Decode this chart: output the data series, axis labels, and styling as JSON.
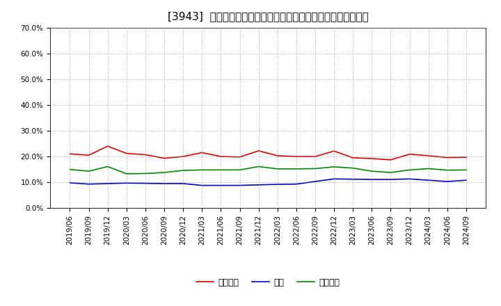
{
  "title": "[3943]  売上債権、在庫、買入債務の総資産に対する比率の推移",
  "x_labels": [
    "2019/06",
    "2019/09",
    "2019/12",
    "2020/03",
    "2020/06",
    "2020/09",
    "2020/12",
    "2021/03",
    "2021/06",
    "2021/09",
    "2021/12",
    "2022/03",
    "2022/06",
    "2022/09",
    "2022/12",
    "2023/03",
    "2023/06",
    "2023/09",
    "2023/12",
    "2024/03",
    "2024/06",
    "2024/09"
  ],
  "urikake": [
    0.21,
    0.205,
    0.24,
    0.212,
    0.207,
    0.193,
    0.2,
    0.215,
    0.2,
    0.198,
    0.222,
    0.203,
    0.2,
    0.2,
    0.221,
    0.195,
    0.192,
    0.187,
    0.209,
    0.203,
    0.196,
    0.197
  ],
  "zaiko": [
    0.098,
    0.093,
    0.095,
    0.097,
    0.096,
    0.095,
    0.095,
    0.088,
    0.088,
    0.088,
    0.09,
    0.092,
    0.093,
    0.103,
    0.113,
    0.112,
    0.111,
    0.111,
    0.113,
    0.108,
    0.103,
    0.108
  ],
  "kaiire": [
    0.15,
    0.143,
    0.161,
    0.133,
    0.134,
    0.138,
    0.146,
    0.148,
    0.148,
    0.148,
    0.161,
    0.152,
    0.152,
    0.153,
    0.16,
    0.155,
    0.143,
    0.138,
    0.148,
    0.153,
    0.147,
    0.148
  ],
  "urikake_color": "#dd0000",
  "zaiko_color": "#0000cc",
  "kaiire_color": "#008800",
  "ylim": [
    0.0,
    0.7
  ],
  "yticks": [
    0.0,
    0.1,
    0.2,
    0.3,
    0.4,
    0.5,
    0.6,
    0.7
  ],
  "background_color": "#ffffff",
  "plot_bg_color": "#ffffff",
  "grid_color": "#999999",
  "legend_urikake": "売上債権",
  "legend_zaiko": "在庫",
  "legend_kaiire": "買入債務",
  "title_fontsize": 11,
  "tick_fontsize": 7.5,
  "legend_fontsize": 9,
  "line_width": 1.2
}
